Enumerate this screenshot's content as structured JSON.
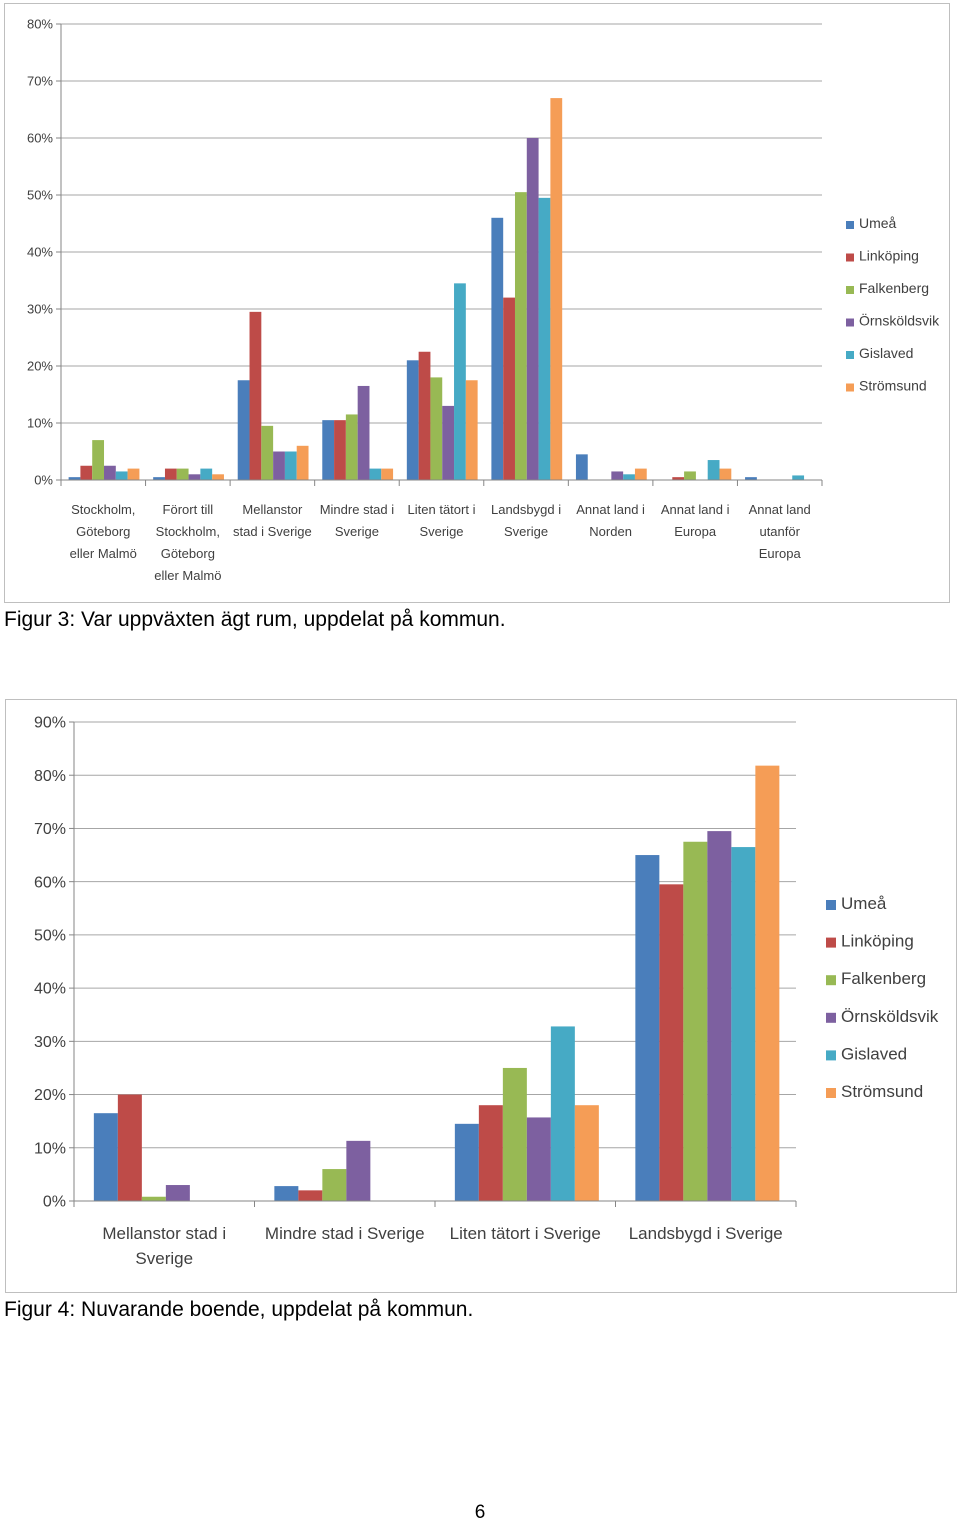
{
  "page_number": "6",
  "captions": {
    "fig3": "Figur 3: Var uppväxten ägt rum, uppdelat på kommun.",
    "fig4": "Figur 4: Nuvarande boende, uppdelat på kommun."
  },
  "colors": {
    "Umeå": "#4a7ebb",
    "Linköping": "#be4b48",
    "Falkenberg": "#98b954",
    "Örnsköldsvik": "#7d60a0",
    "Gislaved": "#46aac5",
    "Strömsund": "#f59d56"
  },
  "chart_data": [
    {
      "type": "bar",
      "title": "",
      "xlabel": "",
      "ylabel": "",
      "ylim": [
        0,
        80
      ],
      "y_ticks": [
        "0%",
        "10%",
        "20%",
        "30%",
        "40%",
        "50%",
        "60%",
        "70%",
        "80%"
      ],
      "grid": true,
      "legend_position": "right",
      "categories": [
        "Stockholm, Göteborg eller Malmö",
        "Förort till Stockholm, Göteborg eller Malmö",
        "Mellanstor stad i Sverige",
        "Mindre stad i Sverige",
        "Liten tätort i Sverige",
        "Landsbygd i Sverige",
        "Annat land i Norden",
        "Annat land i Europa",
        "Annat land utanför Europa"
      ],
      "category_lines": [
        [
          "Stockholm,",
          "Göteborg",
          "eller Malmö"
        ],
        [
          "Förort till",
          "Stockholm,",
          "Göteborg",
          "eller Malmö"
        ],
        [
          "Mellanstor",
          "stad i Sverige"
        ],
        [
          "Mindre stad i",
          "Sverige"
        ],
        [
          "Liten tätort i",
          "Sverige"
        ],
        [
          "Landsbygd i",
          "Sverige"
        ],
        [
          "Annat land i",
          "Norden"
        ],
        [
          "Annat land i",
          "Europa"
        ],
        [
          "Annat land",
          "utanför",
          "Europa"
        ]
      ],
      "series": [
        {
          "name": "Umeå",
          "values": [
            0.5,
            0.5,
            17.5,
            10.5,
            21,
            46,
            4.5,
            0,
            0.5
          ]
        },
        {
          "name": "Linköping",
          "values": [
            2.5,
            2,
            29.5,
            10.5,
            22.5,
            32,
            0,
            0.5,
            0
          ]
        },
        {
          "name": "Falkenberg",
          "values": [
            7,
            2,
            9.5,
            11.5,
            18,
            50.5,
            0,
            1.5,
            0
          ]
        },
        {
          "name": "Örnsköldsvik",
          "values": [
            2.5,
            1,
            5,
            16.5,
            13,
            60,
            1.5,
            0,
            0
          ]
        },
        {
          "name": "Gislaved",
          "values": [
            1.5,
            2,
            5,
            2,
            34.5,
            49.5,
            1,
            3.5,
            0.8
          ]
        },
        {
          "name": "Strömsund",
          "values": [
            2,
            1,
            6,
            2,
            17.5,
            67,
            2,
            2,
            0
          ]
        }
      ]
    },
    {
      "type": "bar",
      "title": "",
      "xlabel": "",
      "ylabel": "",
      "ylim": [
        0,
        90
      ],
      "y_ticks": [
        "0%",
        "10%",
        "20%",
        "30%",
        "40%",
        "50%",
        "60%",
        "70%",
        "80%",
        "90%"
      ],
      "grid": true,
      "legend_position": "right",
      "categories": [
        "Mellanstor stad i Sverige",
        "Mindre stad i Sverige",
        "Liten tätort i Sverige",
        "Landsbygd i Sverige"
      ],
      "category_lines": [
        [
          "Mellanstor stad i",
          "Sverige"
        ],
        [
          "Mindre stad i Sverige"
        ],
        [
          "Liten tätort i Sverige"
        ],
        [
          "Landsbygd i Sverige"
        ]
      ],
      "series": [
        {
          "name": "Umeå",
          "values": [
            16.5,
            2.8,
            14.5,
            65
          ]
        },
        {
          "name": "Linköping",
          "values": [
            20,
            2,
            18,
            59.5
          ]
        },
        {
          "name": "Falkenberg",
          "values": [
            0.8,
            6,
            25,
            67.5
          ]
        },
        {
          "name": "Örnsköldsvik",
          "values": [
            3,
            11.3,
            15.7,
            69.5
          ]
        },
        {
          "name": "Gislaved",
          "values": [
            0,
            0,
            32.8,
            66.5
          ]
        },
        {
          "name": "Strömsund",
          "values": [
            0,
            0,
            18,
            81.8
          ]
        }
      ]
    }
  ]
}
